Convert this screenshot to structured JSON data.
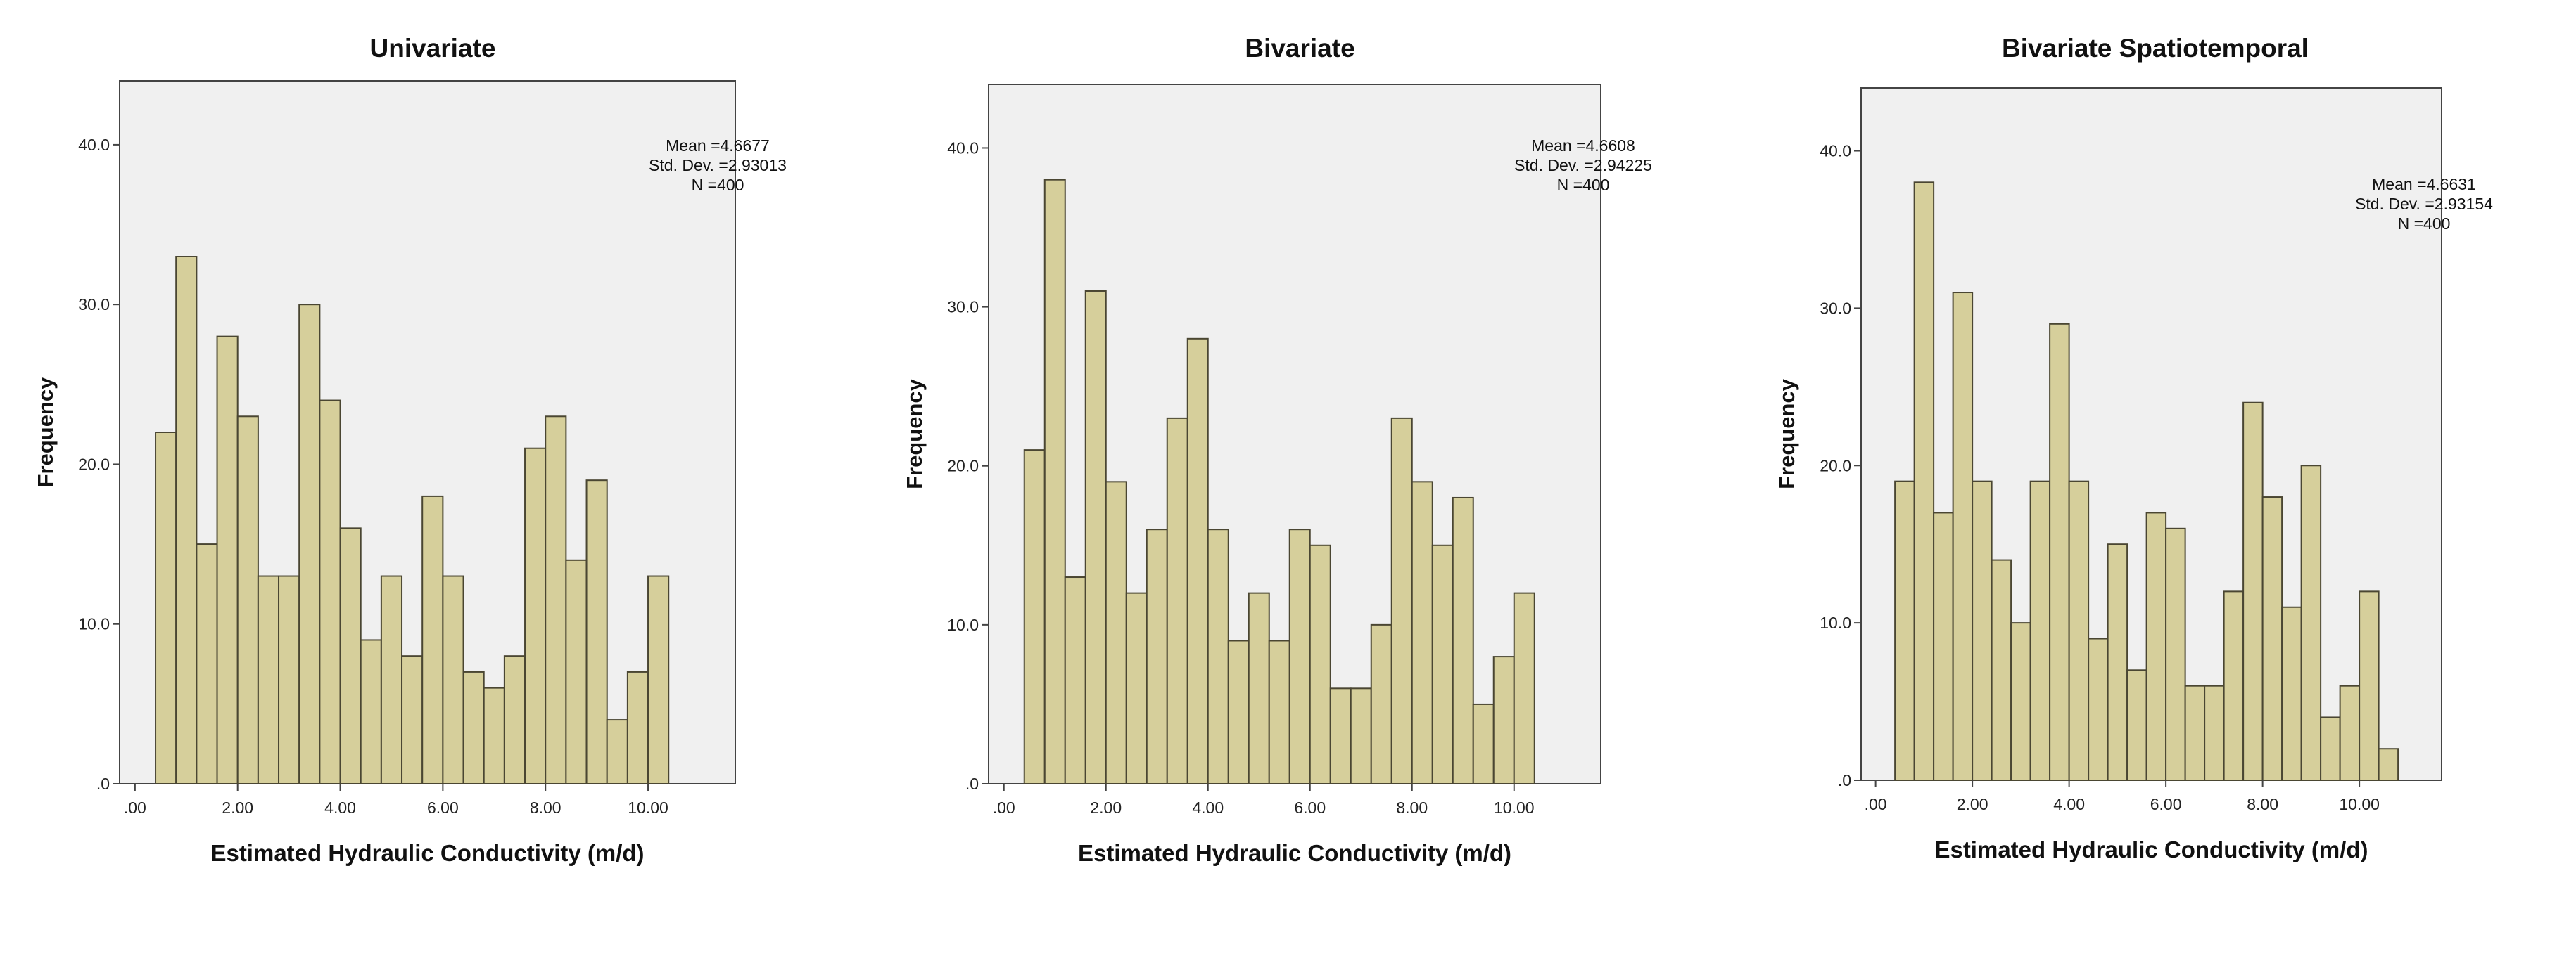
{
  "chart_data": [
    {
      "type": "bar",
      "title": "Univariate",
      "xlabel": "Estimated Hydraulic Conductivity (m/d)",
      "ylabel": "Frequency",
      "x_ticks": [
        ".00",
        "2.00",
        "4.00",
        "6.00",
        "8.00",
        "10.00"
      ],
      "y_ticks": [
        ".0",
        "10.0",
        "20.0",
        "30.0",
        "40.0"
      ],
      "xlim": [
        -0.3,
        11.7
      ],
      "ylim": [
        0,
        44
      ],
      "bin_start": 0.4,
      "bin_width": 0.4,
      "values": [
        22,
        33,
        15,
        28,
        23,
        13,
        13,
        30,
        24,
        16,
        9,
        13,
        8,
        18,
        13,
        7,
        6,
        8,
        21,
        23,
        14,
        19,
        4,
        7,
        13
      ],
      "stats": [
        "Mean =4.6677",
        "Std. Dev. =2.93013",
        "N =400"
      ]
    },
    {
      "type": "bar",
      "title": "Bivariate",
      "xlabel": "Estimated Hydraulic Conductivity (m/d)",
      "ylabel": "Frequency",
      "x_ticks": [
        ".00",
        "2.00",
        "4.00",
        "6.00",
        "8.00",
        "10.00"
      ],
      "y_ticks": [
        ".0",
        "10.0",
        "20.0",
        "30.0",
        "40.0"
      ],
      "xlim": [
        -0.3,
        11.7
      ],
      "ylim": [
        0,
        44
      ],
      "bin_start": 0.4,
      "bin_width": 0.4,
      "values": [
        21,
        38,
        13,
        31,
        19,
        12,
        16,
        23,
        28,
        16,
        9,
        12,
        9,
        16,
        15,
        6,
        6,
        10,
        23,
        19,
        15,
        18,
        5,
        8,
        12
      ],
      "stats": [
        "Mean =4.6608",
        "Std. Dev. =2.94225",
        "N =400"
      ]
    },
    {
      "type": "bar",
      "title": "Bivariate  Spatiotemporal",
      "xlabel": "Estimated Hydraulic Conductivity (m/d)",
      "ylabel": "Frequency",
      "x_ticks": [
        ".00",
        "2.00",
        "4.00",
        "6.00",
        "8.00",
        "10.00"
      ],
      "y_ticks": [
        ".0",
        "10.0",
        "20.0",
        "30.0",
        "40.0"
      ],
      "xlim": [
        -0.3,
        11.7
      ],
      "ylim": [
        0,
        44
      ],
      "bin_start": 0.4,
      "bin_width": 0.4,
      "values": [
        19,
        38,
        17,
        31,
        19,
        14,
        10,
        19,
        29,
        19,
        9,
        15,
        7,
        17,
        16,
        6,
        6,
        12,
        24,
        18,
        11,
        20,
        4,
        6,
        12,
        2
      ],
      "stats": [
        "Mean =4.6631",
        "Std. Dev. =2.93154",
        "N =400"
      ]
    }
  ],
  "colors": {
    "bar_fill": "#d6cf9b",
    "bar_stroke": "#4a4632",
    "plot_bg": "#f0f0f0",
    "frame": "#444444"
  }
}
